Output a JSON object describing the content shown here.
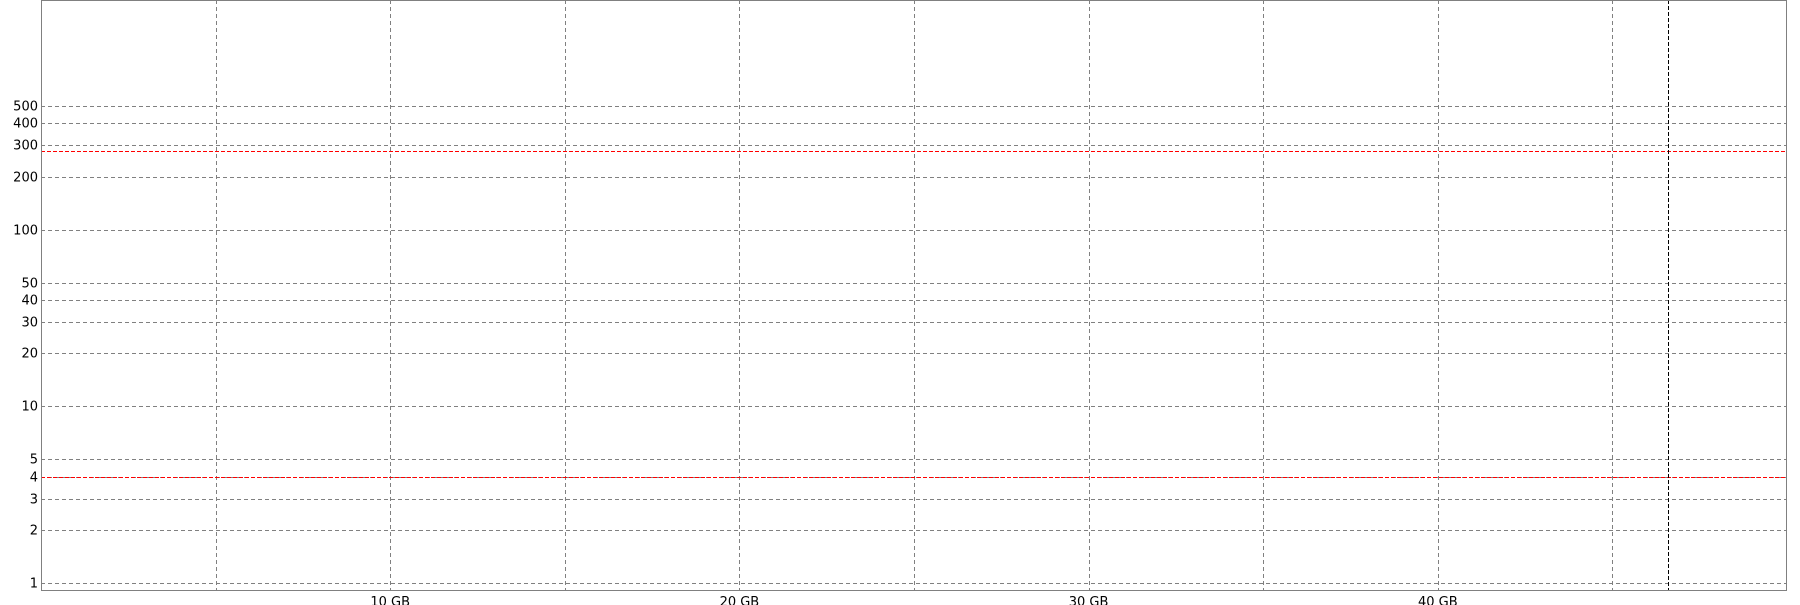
{
  "chart_data": {
    "type": "line",
    "xaxis": {
      "scale": "linear",
      "unit": "GB",
      "range": [
        0,
        50
      ],
      "major_ticks": [
        10,
        20,
        30,
        40
      ],
      "tick_labels": [
        "10 GB",
        "20 GB",
        "30 GB",
        "40 GB"
      ],
      "grid_values": [
        5,
        10,
        15,
        20,
        25,
        30,
        35,
        40,
        45
      ]
    },
    "yaxis": {
      "scale": "log",
      "range": [
        0.9,
        2000
      ],
      "ticks": [
        1,
        2,
        3,
        4,
        5,
        10,
        20,
        30,
        40,
        50,
        100,
        200,
        300,
        400,
        500
      ],
      "tick_labels": [
        "1",
        "2",
        "3",
        "4",
        "5",
        "10",
        "20",
        "30",
        "40",
        "50",
        "100",
        "200",
        "300",
        "400",
        "500"
      ]
    },
    "grid": true,
    "series": [],
    "reference_lines": [
      {
        "orientation": "horizontal",
        "value": 280,
        "color": "#ff0000"
      },
      {
        "orientation": "horizontal",
        "value": 4,
        "color": "#ff0000"
      },
      {
        "orientation": "vertical",
        "value": 46.6,
        "color": "#000000"
      }
    ],
    "colors": {
      "grid": "#808080",
      "reference_red": "#ff0000",
      "marker": "#000000",
      "frame": "#808080"
    }
  }
}
